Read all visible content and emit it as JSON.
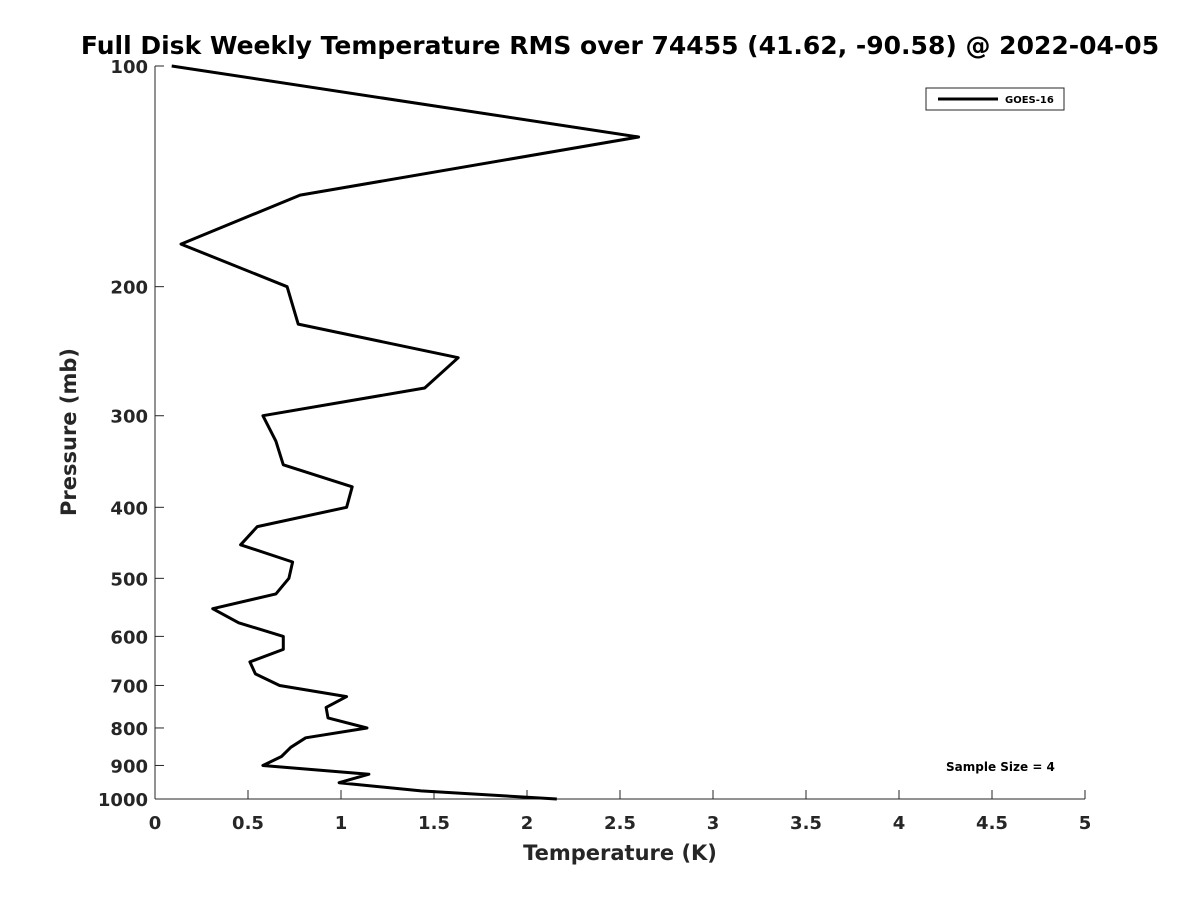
{
  "chart_data": {
    "type": "line",
    "title": "Full Disk Weekly Temperature RMS over 74455 (41.62, -90.58) @ 2022-04-05",
    "xlabel": "Temperature (K)",
    "ylabel": "Pressure (mb)",
    "xlim": [
      0,
      5
    ],
    "ylim": [
      100,
      1000
    ],
    "y_scale": "log",
    "y_direction": "reversed",
    "x_ticks": [
      "0",
      "0.5",
      "1",
      "1.5",
      "2",
      "2.5",
      "3",
      "3.5",
      "4",
      "4.5",
      "5"
    ],
    "y_ticks": [
      "100",
      "200",
      "300",
      "400",
      "500",
      "600",
      "700",
      "800",
      "900",
      "1000"
    ],
    "grid": false,
    "legend_position": "top-right",
    "series": [
      {
        "name": "GOES-16",
        "color": "#000000",
        "points": [
          {
            "x": 0.09,
            "y": 100
          },
          {
            "x": 2.6,
            "y": 125
          },
          {
            "x": 0.78,
            "y": 150
          },
          {
            "x": 0.14,
            "y": 175
          },
          {
            "x": 0.71,
            "y": 200
          },
          {
            "x": 0.77,
            "y": 225
          },
          {
            "x": 1.63,
            "y": 250
          },
          {
            "x": 1.45,
            "y": 275
          },
          {
            "x": 0.58,
            "y": 300
          },
          {
            "x": 0.65,
            "y": 325
          },
          {
            "x": 0.69,
            "y": 350
          },
          {
            "x": 1.06,
            "y": 375
          },
          {
            "x": 1.03,
            "y": 400
          },
          {
            "x": 0.55,
            "y": 425
          },
          {
            "x": 0.46,
            "y": 450
          },
          {
            "x": 0.74,
            "y": 475
          },
          {
            "x": 0.72,
            "y": 500
          },
          {
            "x": 0.65,
            "y": 525
          },
          {
            "x": 0.31,
            "y": 550
          },
          {
            "x": 0.45,
            "y": 575
          },
          {
            "x": 0.69,
            "y": 600
          },
          {
            "x": 0.69,
            "y": 625
          },
          {
            "x": 0.51,
            "y": 650
          },
          {
            "x": 0.54,
            "y": 675
          },
          {
            "x": 0.67,
            "y": 700
          },
          {
            "x": 1.03,
            "y": 725
          },
          {
            "x": 0.92,
            "y": 750
          },
          {
            "x": 0.93,
            "y": 775
          },
          {
            "x": 1.14,
            "y": 800
          },
          {
            "x": 0.81,
            "y": 825
          },
          {
            "x": 0.73,
            "y": 850
          },
          {
            "x": 0.68,
            "y": 875
          },
          {
            "x": 0.58,
            "y": 900
          },
          {
            "x": 1.15,
            "y": 925
          },
          {
            "x": 0.99,
            "y": 950
          },
          {
            "x": 1.43,
            "y": 975
          },
          {
            "x": 2.16,
            "y": 1000
          }
        ]
      }
    ],
    "annotation": "Sample Size = 4"
  }
}
